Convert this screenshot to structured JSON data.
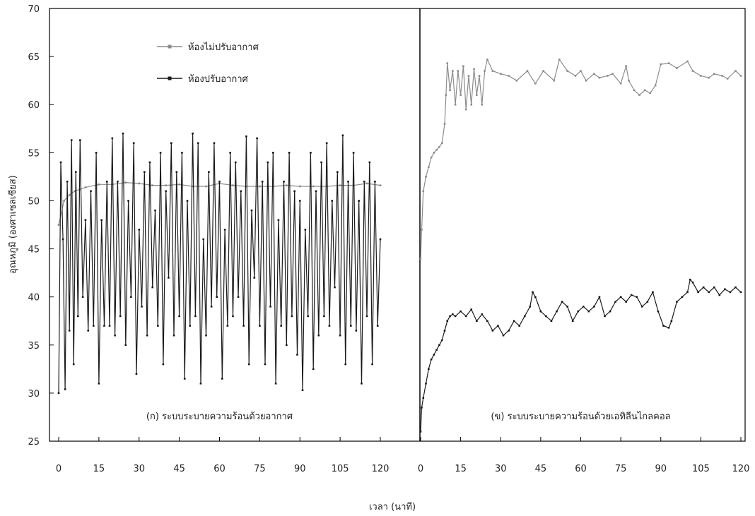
{
  "chart_data": {
    "type": "line",
    "ylabel": "อุณหภูมิ (องศาเซลเซียส)",
    "xlabel": "เวลา (นาที)",
    "ylim": [
      25,
      70
    ],
    "yticks": [
      25,
      30,
      35,
      40,
      45,
      50,
      55,
      60,
      65,
      70
    ],
    "legend": {
      "placement": "top-left",
      "entries": [
        {
          "name": "ห้องไม่ปรับอากาศ",
          "color": "#8c8c8c"
        },
        {
          "name": "ห้องปรับอากาศ",
          "color": "#1a1a1a"
        }
      ]
    },
    "panels": [
      {
        "label": "(ก) ระบบระบายความร้อนด้วยอากาศ",
        "xlim": [
          0,
          120
        ],
        "xticks": [
          0,
          15,
          30,
          45,
          60,
          75,
          90,
          105,
          120
        ],
        "series": [
          {
            "name": "ห้องไม่ปรับอากาศ",
            "color": "#8c8c8c",
            "x": [
              0,
              2,
              4,
              6,
              8,
              10,
              15,
              20,
              25,
              30,
              35,
              40,
              45,
              50,
              55,
              60,
              65,
              70,
              75,
              80,
              85,
              90,
              95,
              100,
              105,
              110,
              115,
              120
            ],
            "y": [
              47.5,
              50,
              50.6,
              51,
              51.2,
              51.4,
              51.7,
              51.7,
              51.9,
              51.8,
              51.6,
              51.6,
              51.7,
              51.5,
              51.5,
              51.8,
              51.6,
              51.5,
              51.5,
              51.5,
              51.6,
              51.5,
              51.5,
              51.5,
              51.6,
              51.6,
              51.8,
              51.6
            ]
          },
          {
            "name": "ห้องปรับอากาศ",
            "color": "#1a1a1a",
            "x": [
              0,
              0.8,
              1.6,
              2.4,
              3.2,
              4,
              4.8,
              5.6,
              6.4,
              7.2,
              8,
              9,
              10,
              11,
              12,
              13,
              14,
              15,
              16,
              17,
              18,
              19,
              20,
              21,
              22,
              23,
              24,
              25,
              26,
              27,
              28,
              29,
              30,
              31,
              32,
              33,
              34,
              35,
              36,
              37,
              38,
              39,
              40,
              41,
              42,
              43,
              44,
              45,
              46,
              47,
              48,
              49,
              50,
              51,
              52,
              53,
              54,
              55,
              56,
              57,
              58,
              59,
              60,
              61,
              62,
              63,
              64,
              65,
              66,
              67,
              68,
              69,
              70,
              71,
              72,
              73,
              74,
              75,
              76,
              77,
              78,
              79,
              80,
              81,
              82,
              83,
              84,
              85,
              86,
              87,
              88,
              89,
              90,
              91,
              92,
              93,
              94,
              95,
              96,
              97,
              98,
              99,
              100,
              101,
              102,
              103,
              104,
              105,
              106,
              107,
              108,
              109,
              110,
              111,
              112,
              113,
              114,
              115,
              116,
              117,
              118,
              119,
              120
            ],
            "y": [
              30,
              54,
              46,
              30.4,
              52,
              36.5,
              56.3,
              33,
              53,
              38,
              56.3,
              40,
              48,
              36.5,
              51,
              37,
              55,
              31,
              48,
              37,
              52,
              37,
              56.5,
              36,
              52,
              38,
              57,
              35,
              50,
              40,
              56,
              32,
              47,
              39,
              53,
              36,
              54,
              41,
              49,
              37,
              55,
              33,
              51,
              42,
              56,
              36,
              53,
              38,
              55,
              31.5,
              50,
              37,
              57,
              38,
              56,
              31,
              46,
              36,
              53,
              39,
              56,
              40,
              52,
              31.5,
              47,
              37,
              55,
              38,
              54,
              40,
              51,
              37,
              56.7,
              33,
              49,
              42,
              56.5,
              37,
              52,
              33,
              54,
              39,
              55,
              31,
              48,
              37,
              52,
              35,
              55,
              38,
              51,
              34,
              50,
              30.3,
              47,
              38,
              55,
              32.5,
              51,
              36,
              54,
              38,
              56,
              37,
              50,
              41,
              53,
              36,
              56.8,
              33,
              52,
              37,
              55,
              36.5,
              50,
              31,
              52,
              38,
              54,
              33,
              52,
              37,
              46
            ]
          }
        ]
      },
      {
        "label": "(ข) ระบบระบายความร้อนด้วยเอทิลีนไกลคอล",
        "xlim": [
          0,
          120
        ],
        "xticks": [
          0,
          15,
          30,
          45,
          60,
          75,
          90,
          105,
          120
        ],
        "series": [
          {
            "name": "ห้องไม่ปรับอากาศ",
            "color": "#8c8c8c",
            "x": [
              0,
              0.4,
              1,
              2,
              3,
              4,
              5,
              6,
              7,
              8,
              9,
              9.5,
              10,
              11,
              12,
              13,
              14,
              15,
              16,
              17,
              18,
              19,
              20,
              21,
              22,
              23,
              24,
              25,
              27,
              30,
              33,
              36,
              40,
              43,
              46,
              50,
              52,
              55,
              58,
              60,
              62,
              65,
              67,
              70,
              72,
              75,
              77,
              78,
              80,
              82,
              84,
              86,
              88,
              90,
              93,
              96,
              100,
              102,
              105,
              108,
              110,
              113,
              115,
              118,
              120
            ],
            "y": [
              44,
              47,
              51,
              52.5,
              53.5,
              54.5,
              55,
              55.3,
              55.6,
              56,
              58,
              61,
              64.3,
              61.5,
              63.5,
              60,
              63.5,
              61,
              64,
              59.5,
              63,
              60,
              63.7,
              61,
              63,
              60,
              63.5,
              64.7,
              63.5,
              63.2,
              63,
              62.5,
              63.5,
              62.2,
              63.5,
              62.5,
              64.7,
              63.5,
              63,
              63.5,
              62.5,
              63.2,
              62.8,
              63,
              63.2,
              62.2,
              64,
              62.5,
              61.5,
              61,
              61.5,
              61.2,
              62,
              64.2,
              64.3,
              63.8,
              64.5,
              63.5,
              63,
              62.8,
              63.2,
              63,
              62.7,
              63.5,
              63
            ]
          },
          {
            "name": "ห้องปรับอากาศ",
            "color": "#1a1a1a",
            "x": [
              0,
              0.4,
              1,
              2,
              3,
              4,
              5,
              6,
              7,
              8,
              9,
              10,
              11,
              12,
              13,
              15,
              17,
              19,
              21,
              23,
              25,
              27,
              29,
              31,
              33,
              35,
              37,
              39,
              41,
              42,
              43,
              45,
              47,
              49,
              51,
              53,
              55,
              57,
              59,
              61,
              63,
              65,
              67,
              69,
              71,
              73,
              75,
              77,
              79,
              81,
              83,
              85,
              87,
              89,
              91,
              93,
              94,
              96,
              98,
              100,
              101,
              102,
              104,
              106,
              108,
              110,
              112,
              114,
              116,
              118,
              120
            ],
            "y": [
              26,
              28.5,
              29.5,
              31,
              32.5,
              33.5,
              34,
              34.5,
              35,
              35.5,
              36.5,
              37.5,
              38,
              38.2,
              38,
              38.5,
              38,
              38.7,
              37.5,
              38.2,
              37.5,
              36.5,
              37,
              36,
              36.5,
              37.5,
              37,
              38,
              39,
              40.5,
              40,
              38.5,
              38,
              37.5,
              38.5,
              39.5,
              39,
              37.5,
              38.5,
              39,
              38.5,
              39,
              40,
              38,
              38.5,
              39.5,
              40,
              39.5,
              40.2,
              40,
              39,
              39.5,
              40.5,
              38.5,
              37,
              36.8,
              37.5,
              39.5,
              40,
              40.5,
              41.8,
              41.5,
              40.5,
              41,
              40.5,
              41,
              40.2,
              40.8,
              40.5,
              41,
              40.5
            ]
          }
        ]
      }
    ]
  }
}
